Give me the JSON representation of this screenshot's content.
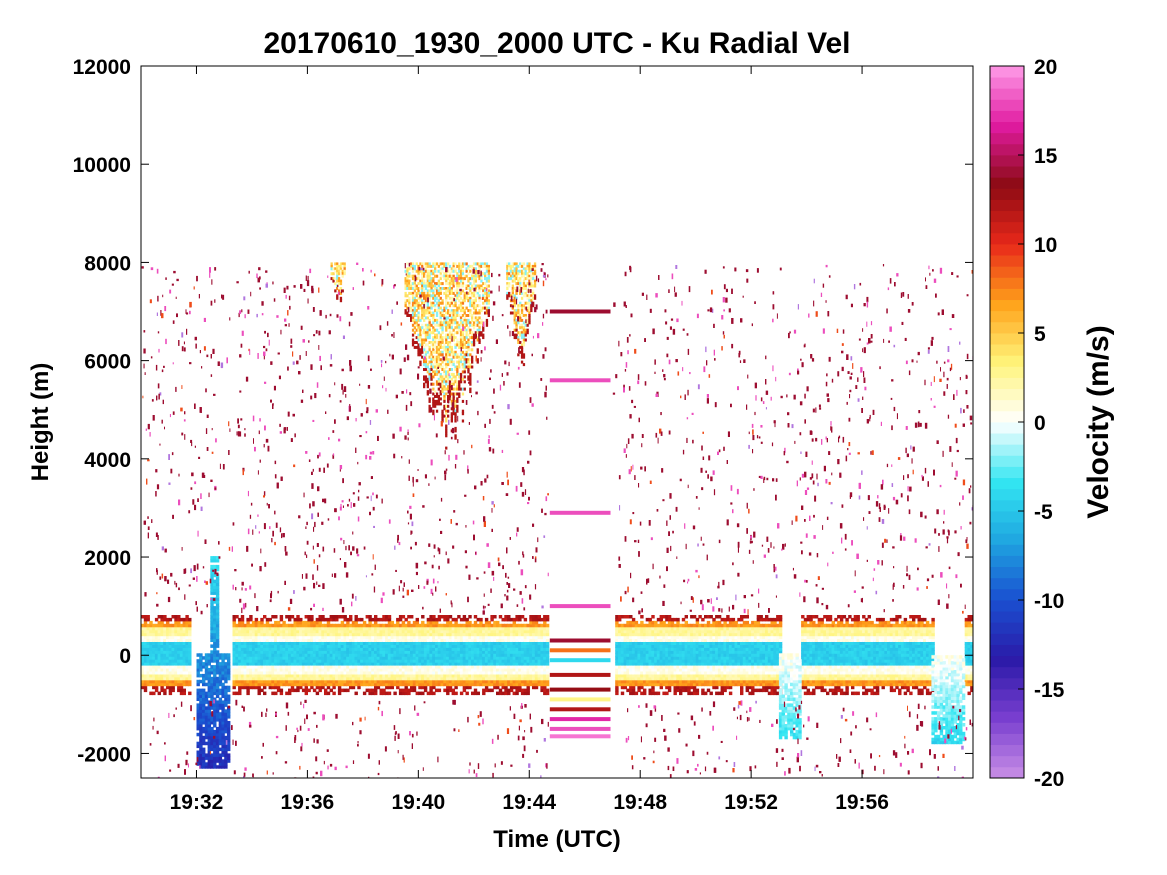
{
  "chart_data": {
    "type": "heatmap",
    "title": "20170610_1930_2000 UTC - Ku Radial Vel",
    "xlabel": "Time (UTC)",
    "ylabel": "Height (m)",
    "colorbar_label": "Velocity (m/s)",
    "x_range": [
      "19:30",
      "20:00"
    ],
    "ylim": [
      -2500,
      12000
    ],
    "clim": [
      -20,
      20
    ],
    "x_ticks": [
      "19:32",
      "19:36",
      "19:40",
      "19:44",
      "19:48",
      "19:52",
      "19:56"
    ],
    "y_ticks": [
      -2000,
      0,
      2000,
      4000,
      6000,
      8000,
      10000,
      12000
    ],
    "colorbar_ticks": [
      -20,
      -15,
      -10,
      -5,
      0,
      5,
      10,
      15,
      20
    ],
    "colormap": [
      "#c98fe6",
      "#7a3fd0",
      "#2a1aa8",
      "#1a4fd0",
      "#1fa6e0",
      "#33e6f2",
      "#ffffff",
      "#fff47a",
      "#ffa21a",
      "#e8281a",
      "#8c0a14",
      "#e01aa0",
      "#ff9ce8"
    ],
    "grid": false,
    "data_ceiling_m": 8000,
    "features": [
      {
        "name": "surface-band",
        "time": [
          "19:30",
          "20:00"
        ],
        "height_m": [
          -800,
          800
        ],
        "velocity_ms": [
          -6,
          15
        ]
      },
      {
        "name": "cloud-1",
        "time": [
          "19:36:50",
          "19:37:20"
        ],
        "height_m": [
          7000,
          8000
        ],
        "velocity_ms": [
          2,
          12
        ]
      },
      {
        "name": "cloud-2",
        "time": [
          "19:39:30",
          "19:42:30"
        ],
        "height_m": [
          4300,
          8000
        ],
        "velocity_ms": [
          -3,
          15
        ]
      },
      {
        "name": "cloud-3",
        "time": [
          "19:43:10",
          "19:44:10"
        ],
        "height_m": [
          5800,
          8000
        ],
        "velocity_ms": [
          -3,
          15
        ]
      },
      {
        "name": "gap",
        "time": [
          "19:44:40",
          "19:47:00"
        ],
        "height_m": [
          -1700,
          8000
        ],
        "velocity_ms": [
          -20,
          20
        ]
      },
      {
        "name": "descent-1",
        "time": [
          "19:32:00",
          "19:33:10"
        ],
        "height_m": [
          -2300,
          2000
        ],
        "velocity_ms": [
          -15,
          -3
        ]
      },
      {
        "name": "descent-2",
        "time": [
          "19:53:00",
          "19:53:45"
        ],
        "height_m": [
          -1700,
          0
        ],
        "velocity_ms": [
          -5,
          2
        ]
      },
      {
        "name": "descent-3",
        "time": [
          "19:58:30",
          "19:59:40"
        ],
        "height_m": [
          -1800,
          0
        ],
        "velocity_ms": [
          -5,
          2
        ]
      }
    ]
  }
}
